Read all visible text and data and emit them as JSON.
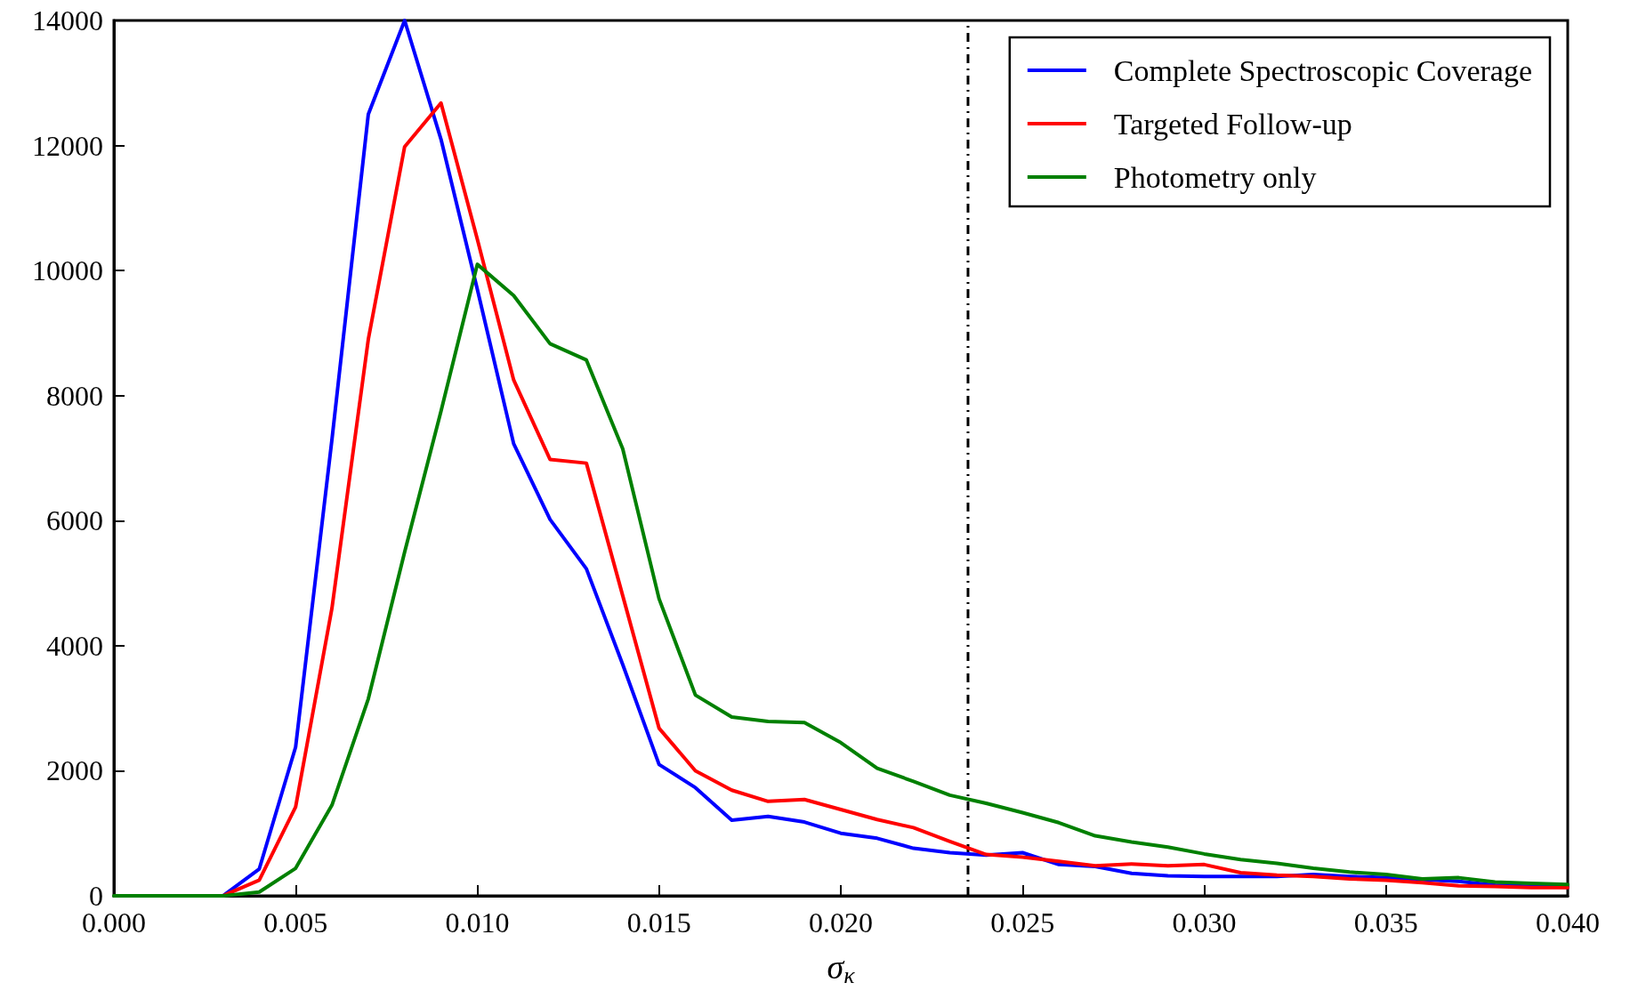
{
  "chart_data": {
    "type": "line",
    "xlabel": "σ$_{κ}$",
    "x": [
      0,
      0.001,
      0.002,
      0.003,
      0.004,
      0.005,
      0.006,
      0.007,
      0.008,
      0.009,
      0.01,
      0.011,
      0.012,
      0.013,
      0.014,
      0.015,
      0.016,
      0.017,
      0.018,
      0.019,
      0.02,
      0.021,
      0.022,
      0.023,
      0.024,
      0.025,
      0.026,
      0.027,
      0.028,
      0.029,
      0.03,
      0.031,
      0.032,
      0.033,
      0.034,
      0.035,
      0.036,
      0.037,
      0.038,
      0.039,
      0.04
    ],
    "series": [
      {
        "name": "Complete Spectroscopic Coverage",
        "color": "#0000ff",
        "values": [
          null,
          null,
          0,
          0,
          430,
          2380,
          7300,
          12500,
          14000,
          12100,
          9700,
          7230,
          6020,
          5230,
          3700,
          2100,
          1730,
          1210,
          1270,
          1180,
          1000,
          920,
          760,
          690,
          650,
          690,
          500,
          470,
          360,
          320,
          310,
          310,
          310,
          340,
          310,
          290,
          260,
          230,
          170,
          150,
          140
        ]
      },
      {
        "name": "Targeted Follow-up",
        "color": "#ff0000",
        "values": [
          null,
          null,
          0,
          0,
          250,
          1420,
          4600,
          8900,
          11980,
          12680,
          10500,
          8250,
          6980,
          6920,
          4800,
          2680,
          2000,
          1690,
          1510,
          1540,
          1380,
          1220,
          1090,
          870,
          660,
          620,
          550,
          480,
          510,
          480,
          500,
          370,
          330,
          310,
          270,
          250,
          210,
          160,
          150,
          130,
          130
        ]
      },
      {
        "name": "Photometry only",
        "color": "#008000",
        "values": [
          0,
          0,
          0,
          0,
          60,
          440,
          1450,
          3150,
          5500,
          7750,
          10100,
          9600,
          8830,
          8570,
          7150,
          4750,
          3210,
          2860,
          2790,
          2770,
          2450,
          2040,
          1830,
          1610,
          1480,
          1330,
          1170,
          960,
          860,
          780,
          670,
          580,
          520,
          440,
          380,
          340,
          270,
          290,
          220,
          200,
          180
        ]
      }
    ],
    "xlim": [
      0,
      0.04
    ],
    "xticks": [
      {
        "value": 0,
        "label": "0.000"
      },
      {
        "value": 0.005,
        "label": "0.005"
      },
      {
        "value": 0.01,
        "label": "0.010"
      },
      {
        "value": 0.015,
        "label": "0.015"
      },
      {
        "value": 0.02,
        "label": "0.020"
      },
      {
        "value": 0.025,
        "label": "0.025"
      },
      {
        "value": 0.03,
        "label": "0.030"
      },
      {
        "value": 0.035,
        "label": "0.035"
      },
      {
        "value": 0.04,
        "label": "0.040"
      }
    ],
    "ylim": [
      0,
      14000
    ],
    "yticks": [
      0,
      2000,
      4000,
      6000,
      8000,
      10000,
      12000,
      14000
    ],
    "ref_lines": [
      {
        "axis": "x",
        "value": 0.0235,
        "color": "#000000",
        "line_style": "dashdot"
      }
    ],
    "legend": "top right",
    "grid": false,
    "marker": "none",
    "line_style": "solid"
  }
}
